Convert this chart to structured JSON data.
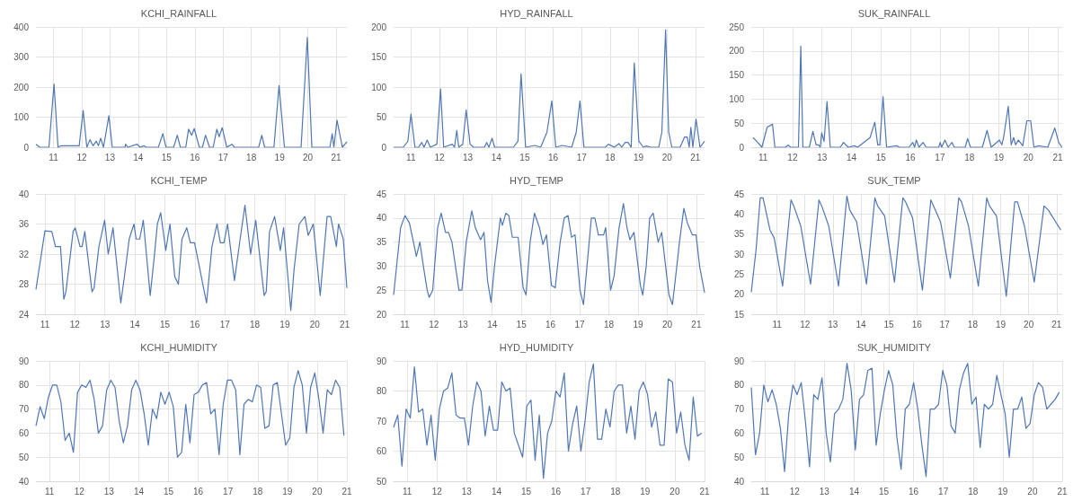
{
  "chart_data": [
    {
      "type": "line",
      "title": "KCHI_RAINFALL",
      "color": "#4f76b5",
      "marker": "none",
      "grid": true,
      "xlim": [
        2010.38,
        2021.38
      ],
      "xticks": [
        {
          "value": 2011,
          "label": "11"
        },
        {
          "value": 2012,
          "label": "12"
        },
        {
          "value": 2013,
          "label": "13"
        },
        {
          "value": 2014,
          "label": "14"
        },
        {
          "value": 2015,
          "label": "15"
        },
        {
          "value": 2016,
          "label": "16"
        },
        {
          "value": 2017,
          "label": "17"
        },
        {
          "value": 2018,
          "label": "18"
        },
        {
          "value": 2019,
          "label": "19"
        },
        {
          "value": 2020,
          "label": "20"
        },
        {
          "value": 2021,
          "label": "21"
        }
      ],
      "ylim": [
        0,
        400
      ],
      "yticks": [
        0,
        100,
        200,
        300,
        400
      ],
      "x": [
        2010.38,
        2010.52,
        2010.84,
        2011.02,
        2011.16,
        2011.27,
        2011.91,
        2012.05,
        2012.18,
        2012.29,
        2012.4,
        2012.51,
        2012.59,
        2012.67,
        2012.77,
        2012.96,
        2013.08,
        2013.53,
        2013.55,
        2013.63,
        2013.96,
        2014.06,
        2014.2,
        2014.28,
        2014.71,
        2014.87,
        2014.98,
        2015.25,
        2015.38,
        2015.49,
        2015.68,
        2015.78,
        2015.89,
        2015.98,
        2016.16,
        2016.27,
        2016.38,
        2016.52,
        2016.65,
        2016.78,
        2016.86,
        2016.97,
        2017.13,
        2017.31,
        2017.4,
        2018.26,
        2018.37,
        2018.47,
        2018.8,
        2018.98,
        2019.17,
        2019.76,
        2019.98,
        2020.14,
        2020.78,
        2020.86,
        2020.92,
        2021.03,
        2021.22,
        2021.38
      ],
      "values": [
        10,
        0,
        0,
        210,
        0,
        5,
        5,
        122,
        0,
        25,
        5,
        20,
        5,
        30,
        0,
        105,
        0,
        0,
        10,
        0,
        10,
        0,
        5,
        0,
        0,
        45,
        0,
        0,
        40,
        0,
        0,
        60,
        40,
        62,
        0,
        0,
        40,
        0,
        0,
        60,
        35,
        65,
        0,
        10,
        0,
        0,
        40,
        0,
        0,
        205,
        0,
        0,
        365,
        0,
        0,
        45,
        0,
        90,
        0,
        18
      ]
    },
    {
      "type": "line",
      "title": "HYD_RAINFALL",
      "color": "#4f76b5",
      "marker": "none",
      "grid": true,
      "xlim": [
        2010.39,
        2021.32
      ],
      "xticks": [
        {
          "value": 2011,
          "label": "11"
        },
        {
          "value": 2012,
          "label": "12"
        },
        {
          "value": 2013,
          "label": "13"
        },
        {
          "value": 2014,
          "label": "14"
        },
        {
          "value": 2015,
          "label": "15"
        },
        {
          "value": 2016,
          "label": "16"
        },
        {
          "value": 2017,
          "label": "17"
        },
        {
          "value": 2018,
          "label": "18"
        },
        {
          "value": 2019,
          "label": "19"
        },
        {
          "value": 2020,
          "label": "20"
        },
        {
          "value": 2021,
          "label": "21"
        }
      ],
      "ylim": [
        0,
        200
      ],
      "yticks": [
        0,
        50,
        100,
        150,
        200
      ],
      "x": [
        2010.39,
        2010.73,
        2010.89,
        2011.0,
        2011.14,
        2011.27,
        2011.38,
        2011.46,
        2011.57,
        2011.68,
        2011.91,
        2012.04,
        2012.15,
        2012.45,
        2012.53,
        2012.61,
        2012.68,
        2012.82,
        2012.94,
        2013.08,
        2013.2,
        2013.58,
        2013.66,
        2013.74,
        2013.85,
        2013.94,
        2014.6,
        2014.76,
        2014.87,
        2015.03,
        2015.35,
        2015.56,
        2015.78,
        2015.95,
        2016.09,
        2016.32,
        2016.65,
        2016.81,
        2016.94,
        2017.08,
        2017.83,
        2017.94,
        2018.15,
        2018.31,
        2018.41,
        2018.53,
        2018.63,
        2018.74,
        2018.85,
        2019.01,
        2019.17,
        2019.27,
        2019.44,
        2019.71,
        2019.82,
        2019.95,
        2020.06,
        2020.17,
        2020.46,
        2020.62,
        2020.71,
        2020.78,
        2020.84,
        2020.91,
        2021.02,
        2021.16,
        2021.32
      ],
      "values": [
        0,
        0,
        10,
        55,
        0,
        0,
        8,
        0,
        12,
        0,
        5,
        97,
        0,
        5,
        0,
        28,
        0,
        5,
        62,
        5,
        0,
        0,
        8,
        0,
        15,
        0,
        0,
        10,
        122,
        0,
        3,
        0,
        25,
        77,
        0,
        3,
        0,
        25,
        77,
        0,
        0,
        5,
        0,
        6,
        0,
        8,
        8,
        0,
        140,
        10,
        0,
        2,
        0,
        0,
        25,
        195,
        25,
        0,
        0,
        17,
        17,
        0,
        33,
        0,
        47,
        0,
        10
      ]
    },
    {
      "type": "line",
      "title": "SUK_RAINFALL",
      "color": "#4f76b5",
      "marker": "none",
      "grid": true,
      "xlim": [
        2010.6,
        2021.15
      ],
      "xticks": [
        {
          "value": 2011,
          "label": "11"
        },
        {
          "value": 2012,
          "label": "12"
        },
        {
          "value": 2013,
          "label": "13"
        },
        {
          "value": 2014,
          "label": "14"
        },
        {
          "value": 2015,
          "label": "15"
        },
        {
          "value": 2016,
          "label": "16"
        },
        {
          "value": 2017,
          "label": "17"
        },
        {
          "value": 2018,
          "label": "18"
        },
        {
          "value": 2019,
          "label": "19"
        },
        {
          "value": 2020,
          "label": "20"
        },
        {
          "value": 2021,
          "label": "21"
        }
      ],
      "ylim": [
        0,
        250
      ],
      "yticks": [
        0,
        50,
        100,
        150,
        200,
        250
      ],
      "x": [
        2010.66,
        2010.82,
        2010.96,
        2011.14,
        2011.24,
        2011.32,
        2011.4,
        2011.77,
        2011.85,
        2011.93,
        2012.2,
        2012.28,
        2012.35,
        2012.57,
        2012.69,
        2012.8,
        2012.88,
        2012.94,
        2012.99,
        2013.07,
        2013.17,
        2013.28,
        2013.62,
        2013.73,
        2013.89,
        2014.1,
        2014.21,
        2014.63,
        2014.79,
        2014.89,
        2014.96,
        2015.07,
        2015.19,
        2015.53,
        2015.63,
        2015.95,
        2016.08,
        2016.14,
        2016.2,
        2016.29,
        2016.43,
        2016.53,
        2016.96,
        2017.01,
        2017.06,
        2017.17,
        2017.28,
        2017.41,
        2017.49,
        2017.86,
        2017.94,
        2018.04,
        2018.44,
        2018.6,
        2018.74,
        2019.02,
        2019.1,
        2019.16,
        2019.32,
        2019.42,
        2019.5,
        2019.57,
        2019.66,
        2019.81,
        2019.95,
        2020.08,
        2020.19,
        2020.34,
        2020.66,
        2020.9,
        2021.03,
        2021.14
      ],
      "values": [
        20,
        10,
        0,
        42,
        45,
        48,
        0,
        0,
        5,
        0,
        0,
        210,
        0,
        0,
        33,
        5,
        5,
        0,
        30,
        12,
        95,
        0,
        0,
        10,
        0,
        3,
        0,
        20,
        52,
        5,
        5,
        105,
        0,
        3,
        0,
        0,
        10,
        0,
        15,
        0,
        10,
        0,
        0,
        10,
        0,
        15,
        0,
        10,
        0,
        0,
        18,
        0,
        0,
        35,
        0,
        15,
        5,
        20,
        85,
        5,
        20,
        5,
        15,
        3,
        55,
        55,
        0,
        3,
        0,
        40,
        10,
        0
      ]
    },
    {
      "type": "line",
      "title": "KCHI_TEMP",
      "color": "#4f76b5",
      "marker": "none",
      "grid": true,
      "xlim": [
        2010.7,
        2021.07
      ],
      "xticks": [
        {
          "value": 2011,
          "label": "11"
        },
        {
          "value": 2012,
          "label": "12"
        },
        {
          "value": 2013,
          "label": "13"
        },
        {
          "value": 2014,
          "label": "14"
        },
        {
          "value": 2015,
          "label": "15"
        },
        {
          "value": 2016,
          "label": "16"
        },
        {
          "value": 2017,
          "label": "17"
        },
        {
          "value": 2018,
          "label": "18"
        },
        {
          "value": 2019,
          "label": "19"
        },
        {
          "value": 2020,
          "label": "20"
        },
        {
          "value": 2021,
          "label": "21"
        }
      ],
      "ylim": [
        24,
        40
      ],
      "yticks": [
        24,
        28,
        32,
        36,
        40
      ],
      "x": [
        2010.7,
        2011.0,
        2011.23,
        2011.35,
        2011.52,
        2011.63,
        2011.7,
        2011.94,
        2012.01,
        2012.17,
        2012.24,
        2012.33,
        2012.57,
        2012.64,
        2012.8,
        2012.99,
        2013.11,
        2013.18,
        2013.27,
        2013.53,
        2013.65,
        2013.81,
        2013.97,
        2014.04,
        2014.16,
        2014.28,
        2014.51,
        2014.63,
        2014.75,
        2014.86,
        2015.03,
        2015.17,
        2015.33,
        2015.45,
        2015.57,
        2015.73,
        2015.85,
        2015.99,
        2016.39,
        2016.57,
        2016.74,
        2016.85,
        2016.97,
        2017.09,
        2017.32,
        2017.51,
        2017.67,
        2017.86,
        2018.03,
        2018.31,
        2018.38,
        2018.49,
        2018.66,
        2018.85,
        2018.96,
        2019.2,
        2019.31,
        2019.48,
        2019.67,
        2019.78,
        2019.95,
        2020.18,
        2020.3,
        2020.41,
        2020.53,
        2020.72,
        2020.79,
        2020.95,
        2021.07
      ],
      "values": [
        27.3,
        35.1,
        35,
        33,
        33,
        26,
        27,
        35,
        35.5,
        33,
        33,
        35,
        27,
        27.5,
        33,
        36.5,
        32,
        33.5,
        35.5,
        25.5,
        29,
        34,
        36,
        34,
        34,
        36.5,
        26.5,
        31,
        36,
        37.5,
        32.5,
        36,
        29,
        28,
        34,
        35.5,
        33.5,
        33.5,
        25.5,
        33,
        36,
        33.5,
        33.5,
        36,
        28.5,
        34,
        38.5,
        32,
        36.5,
        26.5,
        27,
        35,
        37,
        32.5,
        35.5,
        24.5,
        30,
        36,
        37,
        34.5,
        36,
        26.5,
        32,
        37,
        37,
        33,
        36,
        34,
        27.5
      ]
    },
    {
      "type": "line",
      "title": "HYD_TEMP",
      "color": "#4f76b5",
      "marker": "none",
      "grid": true,
      "xlim": [
        2010.62,
        2021.28
      ],
      "xticks": [
        {
          "value": 2011,
          "label": "11"
        },
        {
          "value": 2012,
          "label": "12"
        },
        {
          "value": 2013,
          "label": "13"
        },
        {
          "value": 2014,
          "label": "14"
        },
        {
          "value": 2015,
          "label": "15"
        },
        {
          "value": 2016,
          "label": "16"
        },
        {
          "value": 2017,
          "label": "17"
        },
        {
          "value": 2018,
          "label": "18"
        },
        {
          "value": 2019,
          "label": "19"
        },
        {
          "value": 2020,
          "label": "20"
        },
        {
          "value": 2021,
          "label": "21"
        }
      ],
      "ylim": [
        20,
        45
      ],
      "yticks": [
        20,
        25,
        30,
        35,
        40,
        45
      ],
      "x": [
        2010.62,
        2010.86,
        2011.01,
        2011.16,
        2011.3,
        2011.4,
        2011.52,
        2011.64,
        2011.77,
        2011.84,
        2011.96,
        2012.13,
        2012.25,
        2012.4,
        2012.5,
        2012.62,
        2012.86,
        2012.96,
        2013.11,
        2013.3,
        2013.42,
        2013.6,
        2013.72,
        2013.84,
        2013.96,
        2014.08,
        2014.28,
        2014.35,
        2014.47,
        2014.57,
        2014.69,
        2014.89,
        2015.06,
        2015.16,
        2015.3,
        2015.45,
        2015.62,
        2015.74,
        2015.86,
        2016.03,
        2016.16,
        2016.33,
        2016.47,
        2016.6,
        2016.72,
        2016.84,
        2017.01,
        2017.13,
        2017.25,
        2017.4,
        2017.52,
        2017.64,
        2017.82,
        2017.89,
        2018.06,
        2018.18,
        2018.35,
        2018.5,
        2018.62,
        2018.72,
        2018.86,
        2019.08,
        2019.16,
        2019.28,
        2019.4,
        2019.52,
        2019.69,
        2019.81,
        2020.06,
        2020.18,
        2020.33,
        2020.42,
        2020.57,
        2020.69,
        2020.86,
        2020.99,
        2021.11,
        2021.28
      ],
      "values": [
        24,
        38,
        40.5,
        39,
        35,
        32,
        35,
        30,
        25,
        23.5,
        25,
        38,
        41,
        37,
        37,
        35,
        25,
        25,
        35,
        41.5,
        38,
        35.5,
        37,
        27,
        22.5,
        30,
        40,
        38.5,
        41,
        40.5,
        36,
        36,
        25.5,
        24,
        35,
        41,
        38,
        34.5,
        36.5,
        26,
        25.5,
        35,
        40,
        40.5,
        36,
        36.5,
        25,
        22,
        30,
        40,
        40,
        36.5,
        36.5,
        38,
        25,
        28,
        38,
        43,
        38,
        35.5,
        37,
        26,
        24,
        30,
        40,
        41,
        35,
        37,
        24,
        22,
        30,
        35,
        42,
        39,
        36.5,
        36.5,
        30,
        24.5
      ]
    },
    {
      "type": "line",
      "title": "SUK_TEMP",
      "color": "#4f76b5",
      "marker": "none",
      "grid": true,
      "xlim": [
        2010.08,
        2021.2
      ],
      "xticks": [
        {
          "value": 2011,
          "label": "11"
        },
        {
          "value": 2012,
          "label": "12"
        },
        {
          "value": 2013,
          "label": "13"
        },
        {
          "value": 2014,
          "label": "14"
        },
        {
          "value": 2015,
          "label": "15"
        },
        {
          "value": 2016,
          "label": "16"
        },
        {
          "value": 2017,
          "label": "17"
        },
        {
          "value": 2018,
          "label": "18"
        },
        {
          "value": 2019,
          "label": "19"
        },
        {
          "value": 2020,
          "label": "20"
        },
        {
          "value": 2021,
          "label": "21"
        }
      ],
      "ylim": [
        15,
        45
      ],
      "yticks": [
        15,
        20,
        25,
        30,
        35,
        40,
        45
      ],
      "x": [
        2010.08,
        2010.25,
        2010.4,
        2010.5,
        2010.75,
        2010.9,
        2011.2,
        2011.5,
        2011.6,
        2011.85,
        2012.2,
        2012.5,
        2012.6,
        2012.85,
        2013.2,
        2013.5,
        2013.6,
        2013.85,
        2014.2,
        2014.5,
        2014.6,
        2014.85,
        2015.2,
        2015.5,
        2015.6,
        2015.85,
        2016.2,
        2016.5,
        2016.6,
        2016.85,
        2017.2,
        2017.5,
        2017.6,
        2017.85,
        2018.2,
        2018.5,
        2018.6,
        2018.85,
        2019.2,
        2019.5,
        2019.6,
        2019.85,
        2020.2,
        2020.55,
        2020.7,
        2021.15
      ],
      "values": [
        20.5,
        31,
        44,
        44,
        36,
        34,
        22,
        43.5,
        42,
        37,
        22.5,
        43.5,
        42,
        37,
        22,
        44.5,
        41,
        38,
        22.5,
        44,
        42,
        39.5,
        23,
        44,
        43,
        39,
        21,
        43.5,
        42,
        38,
        24,
        44,
        43,
        37,
        22,
        44,
        42,
        39.5,
        19.5,
        43,
        43,
        37,
        23,
        42,
        41,
        36
      ]
    },
    {
      "type": "line",
      "title": "KCHI_HUMIDITY",
      "color": "#4f76b5",
      "marker": "none",
      "grid": true,
      "xlim": [
        2010.54,
        2021.0
      ],
      "xticks": [
        {
          "value": 2011,
          "label": "11"
        },
        {
          "value": 2012,
          "label": "12"
        },
        {
          "value": 2013,
          "label": "13"
        },
        {
          "value": 2014,
          "label": "14"
        },
        {
          "value": 2015,
          "label": "15"
        },
        {
          "value": 2016,
          "label": "16"
        },
        {
          "value": 2017,
          "label": "17"
        },
        {
          "value": 2018,
          "label": "18"
        },
        {
          "value": 2019,
          "label": "19"
        },
        {
          "value": 2020,
          "label": "20"
        },
        {
          "value": 2021,
          "label": "21"
        }
      ],
      "ylim": [
        40,
        90
      ],
      "yticks": [
        40,
        50,
        60,
        70,
        80,
        90
      ],
      "x": [
        2010.54,
        2010.68,
        2010.82,
        2010.96,
        2011.1,
        2011.24,
        2011.38,
        2011.52,
        2011.66,
        2011.8,
        2011.94,
        2012.08,
        2012.22,
        2012.36,
        2012.5,
        2012.64,
        2012.78,
        2012.92,
        2013.06,
        2013.2,
        2013.34,
        2013.48,
        2013.62,
        2013.76,
        2013.9,
        2014.04,
        2014.18,
        2014.32,
        2014.46,
        2014.6,
        2014.74,
        2014.88,
        2015.02,
        2015.16,
        2015.3,
        2015.44,
        2015.58,
        2015.72,
        2015.86,
        2016.0,
        2016.14,
        2016.28,
        2016.42,
        2016.56,
        2016.7,
        2016.84,
        2016.98,
        2017.12,
        2017.26,
        2017.4,
        2017.54,
        2017.68,
        2017.82,
        2017.96,
        2018.1,
        2018.24,
        2018.38,
        2018.52,
        2018.66,
        2018.8,
        2018.94,
        2019.08,
        2019.22,
        2019.36,
        2019.5,
        2019.64,
        2019.78,
        2019.92,
        2020.06,
        2020.2,
        2020.34,
        2020.48,
        2020.62,
        2020.76,
        2020.9
      ],
      "values": [
        63,
        71,
        66,
        75,
        80,
        80,
        73,
        57,
        60,
        52,
        77,
        80,
        79,
        82,
        74,
        60,
        63,
        78,
        82,
        79,
        65,
        56,
        63,
        78,
        82,
        78,
        68,
        55,
        70,
        66,
        77,
        72,
        77,
        71,
        50,
        52,
        72,
        56,
        76,
        77,
        80,
        81,
        68,
        70,
        51,
        72,
        82,
        82,
        78,
        51,
        72,
        74,
        73,
        80,
        79,
        62,
        63,
        80,
        81,
        68,
        55,
        58,
        79,
        86,
        80,
        60,
        79,
        85,
        74,
        60,
        78,
        76,
        82,
        79,
        59
      ]
    },
    {
      "type": "line",
      "title": "HYD_HUMIDITY",
      "color": "#4f76b5",
      "marker": "none",
      "grid": true,
      "xlim": [
        2010.54,
        2021.0
      ],
      "xticks": [
        {
          "value": 2011,
          "label": "11"
        },
        {
          "value": 2012,
          "label": "12"
        },
        {
          "value": 2013,
          "label": "13"
        },
        {
          "value": 2014,
          "label": "14"
        },
        {
          "value": 2015,
          "label": "15"
        },
        {
          "value": 2016,
          "label": "16"
        },
        {
          "value": 2017,
          "label": "17"
        },
        {
          "value": 2018,
          "label": "18"
        },
        {
          "value": 2019,
          "label": "19"
        },
        {
          "value": 2020,
          "label": "20"
        },
        {
          "value": 2021,
          "label": "21"
        }
      ],
      "ylim": [
        50,
        90
      ],
      "yticks": [
        50,
        60,
        70,
        80,
        90
      ],
      "x": [
        2010.54,
        2010.68,
        2010.82,
        2010.96,
        2011.1,
        2011.24,
        2011.38,
        2011.52,
        2011.66,
        2011.8,
        2011.94,
        2012.08,
        2012.22,
        2012.36,
        2012.5,
        2012.64,
        2012.78,
        2012.92,
        2013.06,
        2013.2,
        2013.34,
        2013.48,
        2013.62,
        2013.76,
        2013.9,
        2014.04,
        2014.18,
        2014.32,
        2014.46,
        2014.6,
        2014.74,
        2014.88,
        2015.02,
        2015.16,
        2015.3,
        2015.44,
        2015.58,
        2015.72,
        2015.86,
        2016.0,
        2016.14,
        2016.28,
        2016.42,
        2016.56,
        2016.7,
        2016.84,
        2016.98,
        2017.12,
        2017.26,
        2017.4,
        2017.54,
        2017.68,
        2017.82,
        2017.96,
        2018.1,
        2018.24,
        2018.38,
        2018.52,
        2018.66,
        2018.8,
        2018.94,
        2019.08,
        2019.22,
        2019.36,
        2019.5,
        2019.64,
        2019.78,
        2019.92,
        2020.06,
        2020.2,
        2020.34,
        2020.48,
        2020.62,
        2020.76,
        2020.9
      ],
      "values": [
        68,
        72,
        55,
        74,
        71,
        88,
        73,
        74,
        62,
        72,
        57,
        74,
        80,
        81,
        86,
        72,
        71,
        71,
        62,
        75,
        83,
        80,
        65,
        75,
        67,
        67,
        83,
        80,
        81,
        66,
        62,
        58,
        75,
        77,
        57,
        72,
        51,
        66,
        70,
        80,
        78,
        86,
        60,
        69,
        75,
        60,
        70,
        83,
        89,
        64,
        64,
        74,
        68,
        80,
        82,
        82,
        66,
        75,
        64,
        80,
        83,
        79,
        68,
        73,
        62,
        62,
        84,
        83,
        66,
        73,
        62,
        57,
        78,
        65,
        66
      ]
    },
    {
      "type": "line",
      "title": "SUK_HUMIDITY",
      "color": "#4f76b5",
      "marker": "none",
      "grid": true,
      "xlim": [
        2010.54,
        2021.0
      ],
      "xticks": [
        {
          "value": 2011,
          "label": "11"
        },
        {
          "value": 2012,
          "label": "12"
        },
        {
          "value": 2013,
          "label": "13"
        },
        {
          "value": 2014,
          "label": "14"
        },
        {
          "value": 2015,
          "label": "15"
        },
        {
          "value": 2016,
          "label": "16"
        },
        {
          "value": 2017,
          "label": "17"
        },
        {
          "value": 2018,
          "label": "18"
        },
        {
          "value": 2019,
          "label": "19"
        },
        {
          "value": 2020,
          "label": "20"
        },
        {
          "value": 2021,
          "label": "21"
        }
      ],
      "ylim": [
        40,
        90
      ],
      "yticks": [
        40,
        50,
        60,
        70,
        80,
        90
      ],
      "x": [
        2010.54,
        2010.68,
        2010.82,
        2010.96,
        2011.1,
        2011.24,
        2011.38,
        2011.52,
        2011.66,
        2011.8,
        2011.94,
        2012.08,
        2012.22,
        2012.36,
        2012.5,
        2012.64,
        2012.78,
        2012.92,
        2013.06,
        2013.2,
        2013.34,
        2013.48,
        2013.62,
        2013.76,
        2013.9,
        2014.04,
        2014.18,
        2014.32,
        2014.46,
        2014.6,
        2014.74,
        2014.88,
        2015.02,
        2015.16,
        2015.3,
        2015.44,
        2015.58,
        2015.72,
        2015.86,
        2016.0,
        2016.14,
        2016.28,
        2016.42,
        2016.56,
        2016.7,
        2016.84,
        2016.98,
        2017.12,
        2017.26,
        2017.4,
        2017.54,
        2017.68,
        2017.82,
        2017.96,
        2018.1,
        2018.24,
        2018.38,
        2018.52,
        2018.66,
        2018.8,
        2018.94,
        2019.08,
        2019.22,
        2019.36,
        2019.5,
        2019.64,
        2019.78,
        2019.92,
        2020.06,
        2020.2,
        2020.34,
        2020.48,
        2020.62,
        2020.76,
        2020.9
      ],
      "values": [
        79,
        51,
        60,
        80,
        73,
        78,
        72,
        62,
        44,
        68,
        80,
        76,
        81,
        65,
        46,
        76,
        74,
        83,
        60,
        48,
        68,
        70,
        74,
        89,
        78,
        53,
        74,
        76,
        86,
        87,
        55,
        68,
        78,
        86,
        80,
        58,
        45,
        70,
        72,
        81,
        70,
        55,
        42,
        70,
        70,
        72,
        86,
        80,
        63,
        60,
        78,
        85,
        89,
        72,
        75,
        54,
        72,
        70,
        72,
        84,
        76,
        68,
        50,
        70,
        70,
        75,
        62,
        64,
        76,
        81,
        79,
        70,
        72,
        74,
        77
      ]
    }
  ]
}
